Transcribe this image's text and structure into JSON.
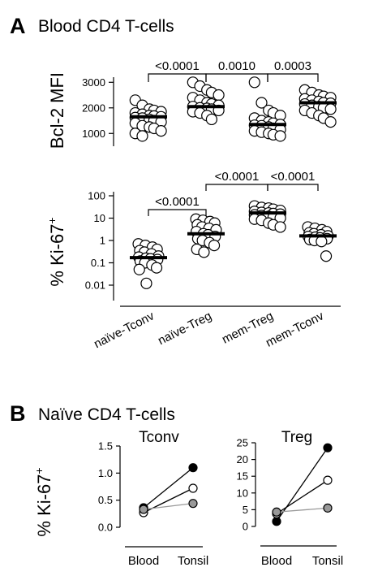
{
  "panel_a": {
    "letter": "A",
    "title": "Blood CD4 T-cells",
    "categories": [
      "naïve-Tconv",
      "naïve-Treg",
      "mem-Treg",
      "mem-Tconv"
    ]
  },
  "panel_b": {
    "letter": "B",
    "title": "Naïve CD4 T-cells",
    "ylabel": "% Ki-67",
    "ylabel_sup": "+"
  },
  "chart_data": [
    {
      "type": "scatter",
      "ylabel": "Bcl-2 MFI",
      "ylim": [
        500,
        3200
      ],
      "yticks": [
        1000,
        2000,
        3000
      ],
      "ytick_labels": [
        "1000",
        "2000",
        "3000"
      ],
      "categories": [
        "naïve-Tconv",
        "naïve-Treg",
        "mem-Treg",
        "mem-Tconv"
      ],
      "medians": [
        1650,
        2050,
        1350,
        2200
      ],
      "points": [
        [
          2300,
          2100,
          1950,
          1900,
          1850,
          1800,
          1750,
          1700,
          1680,
          1650,
          1620,
          1600,
          1550,
          1500,
          1450,
          1400,
          1300,
          1250,
          1200,
          1100,
          1000,
          900
        ],
        [
          3000,
          2850,
          2700,
          2600,
          2500,
          2400,
          2300,
          2200,
          2150,
          2100,
          2050,
          2000,
          1980,
          1950,
          1900,
          1850,
          1800,
          1700,
          1550
        ],
        [
          3000,
          2200,
          1900,
          1800,
          1700,
          1600,
          1500,
          1450,
          1400,
          1350,
          1320,
          1300,
          1250,
          1200,
          1150,
          1100,
          1050,
          1000,
          950,
          900
        ],
        [
          2700,
          2600,
          2500,
          2450,
          2400,
          2350,
          2300,
          2250,
          2200,
          2180,
          2150,
          2100,
          2050,
          2000,
          1950,
          1900,
          1800,
          1700,
          1600,
          1450
        ]
      ],
      "comparisons": [
        {
          "from": 0,
          "to": 1,
          "label": "<0.0001"
        },
        {
          "from": 1,
          "to": 2,
          "label": "0.0010"
        },
        {
          "from": 2,
          "to": 3,
          "label": "0.0003"
        }
      ]
    },
    {
      "type": "scatter",
      "ylabel": "% Ki-67",
      "ylabel_sup": "+",
      "yscale": "log",
      "ylim": [
        0.005,
        100
      ],
      "yticks": [
        0.01,
        0.1,
        1,
        10,
        100
      ],
      "ytick_labels": [
        "0.01",
        "0.1",
        "1",
        "10",
        "100"
      ],
      "categories": [
        "naïve-Tconv",
        "naïve-Treg",
        "mem-Treg",
        "mem-Tconv"
      ],
      "medians": [
        0.17,
        2.0,
        17,
        1.6
      ],
      "points": [
        [
          0.7,
          0.6,
          0.5,
          0.4,
          0.35,
          0.3,
          0.25,
          0.2,
          0.18,
          0.16,
          0.15,
          0.14,
          0.12,
          0.1,
          0.08,
          0.06,
          0.05,
          0.012
        ],
        [
          9,
          8,
          7,
          6,
          5,
          4,
          3.5,
          3,
          2.5,
          2,
          1.8,
          1.5,
          1.2,
          1,
          0.8,
          0.6,
          0.4,
          0.3
        ],
        [
          35,
          30,
          28,
          25,
          22,
          20,
          18,
          17,
          16,
          15,
          14,
          13,
          12,
          11,
          10,
          9,
          8,
          6,
          5,
          4
        ],
        [
          4,
          3.5,
          3,
          2.5,
          2.2,
          2,
          1.8,
          1.6,
          1.5,
          1.4,
          1.3,
          1.2,
          1.1,
          1,
          0.9,
          0.2
        ]
      ],
      "comparisons": [
        {
          "from": 0,
          "to": 1,
          "label": "<0.0001"
        },
        {
          "from": 1,
          "to": 2,
          "label": "<0.0001"
        },
        {
          "from": 2,
          "to": 3,
          "label": "<0.0001"
        }
      ]
    },
    {
      "type": "line",
      "title": "Tconv",
      "categories": [
        "Blood",
        "Tonsil"
      ],
      "ylim": [
        0,
        1.5
      ],
      "yticks": [
        0.0,
        0.5,
        1.0,
        1.5
      ],
      "ytick_labels": [
        "0.0",
        "0.5",
        "1.0",
        "1.5"
      ],
      "series": [
        {
          "color": "#000000",
          "values": [
            0.36,
            1.1
          ]
        },
        {
          "color": "#ffffff",
          "values": [
            0.27,
            0.72
          ]
        },
        {
          "color": "#999999",
          "values": [
            0.33,
            0.44
          ]
        }
      ]
    },
    {
      "type": "line",
      "title": "Treg",
      "categories": [
        "Blood",
        "Tonsil"
      ],
      "ylim": [
        0,
        25
      ],
      "yticks": [
        0,
        5,
        10,
        15,
        20,
        25
      ],
      "ytick_labels": [
        "0",
        "5",
        "10",
        "15",
        "20",
        "25"
      ],
      "series": [
        {
          "color": "#000000",
          "values": [
            1.5,
            23.5
          ]
        },
        {
          "color": "#ffffff",
          "values": [
            3.8,
            13.8
          ]
        },
        {
          "color": "#999999",
          "values": [
            4.3,
            5.5
          ]
        }
      ]
    }
  ]
}
